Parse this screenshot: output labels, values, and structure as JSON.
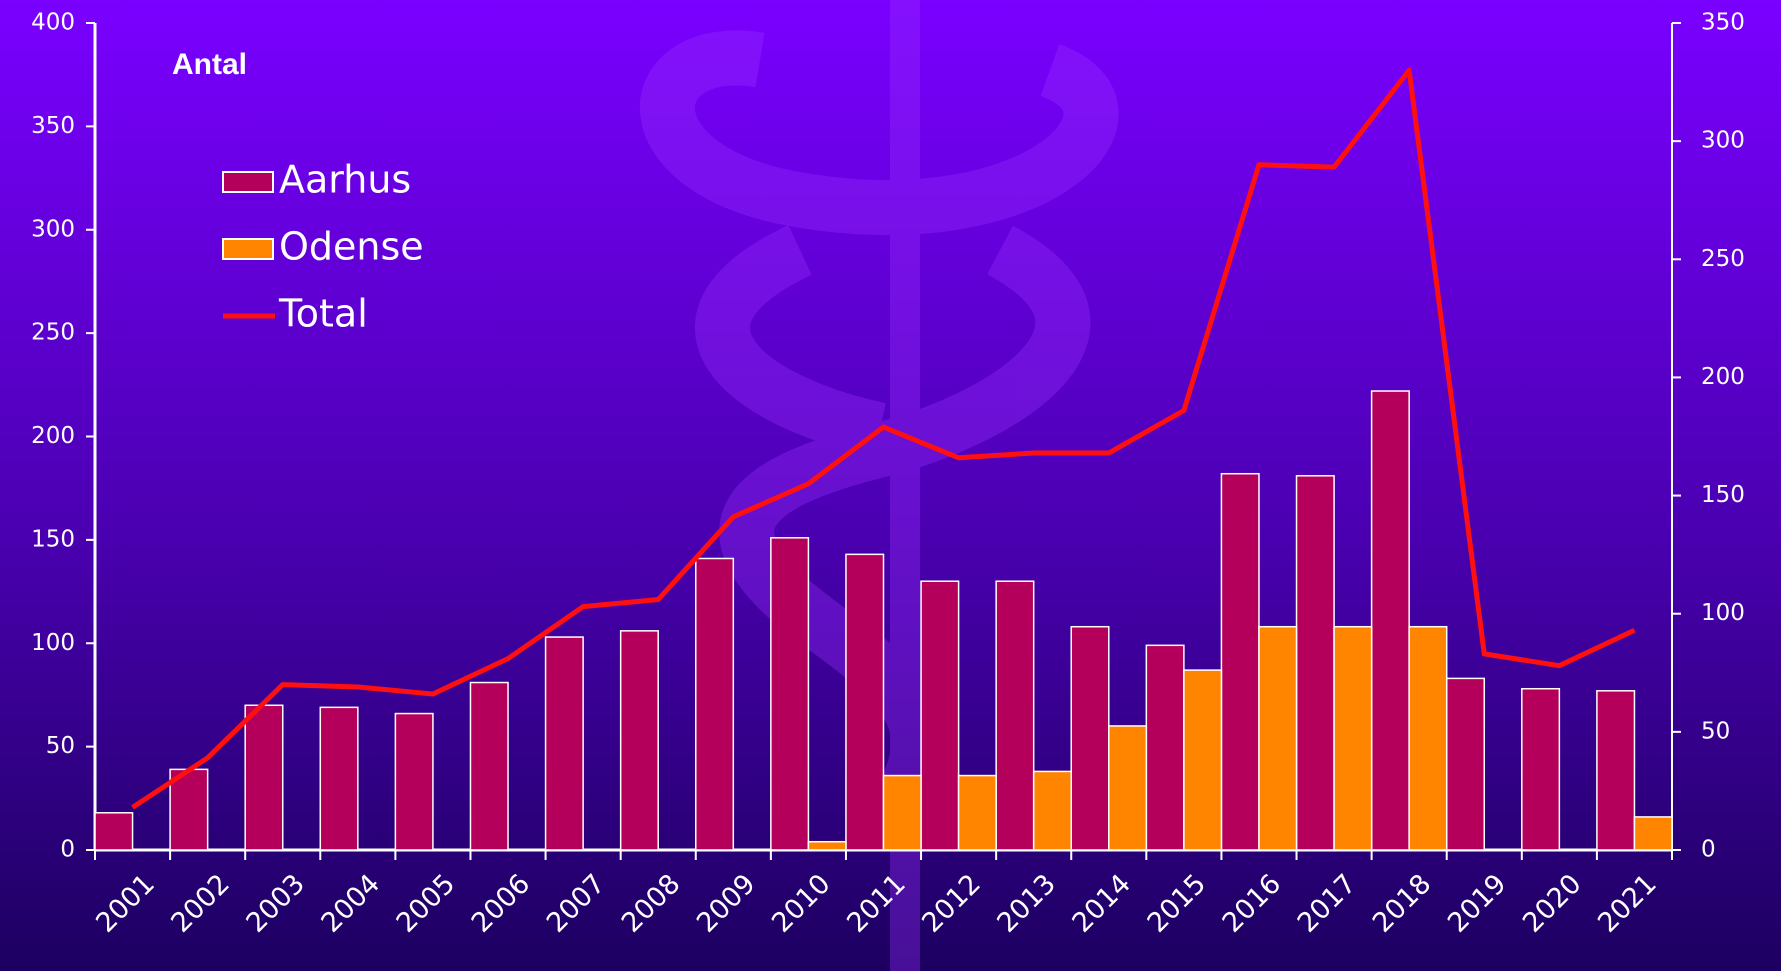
{
  "chart_data": {
    "type": "bar_line",
    "title": "Antal",
    "categories": [
      "2001",
      "2002",
      "2003",
      "2004",
      "2005",
      "2006",
      "2007",
      "2008",
      "2009",
      "2010",
      "2011",
      "2012",
      "2013",
      "2014",
      "2015",
      "2016",
      "2017",
      "2018",
      "2019",
      "2020",
      "2021"
    ],
    "series": [
      {
        "name": "Aarhus",
        "color": "#b4005a",
        "type": "bar",
        "values": [
          18,
          39,
          70,
          69,
          66,
          81,
          103,
          106,
          141,
          151,
          143,
          130,
          130,
          108,
          99,
          182,
          181,
          222,
          83,
          78,
          77
        ]
      },
      {
        "name": "Odense",
        "color": "#ff8400",
        "type": "bar",
        "values": [
          0,
          0,
          0,
          0,
          0,
          0,
          0,
          0,
          0,
          4,
          36,
          36,
          38,
          60,
          87,
          108,
          108,
          108,
          0,
          0,
          16
        ]
      },
      {
        "name": "Total",
        "color": "#ff1010",
        "type": "line",
        "axis": "y2",
        "values": [
          18,
          39,
          70,
          69,
          66,
          81,
          103,
          106,
          141,
          155,
          179,
          166,
          168,
          168,
          186,
          290,
          289,
          330,
          83,
          78,
          93
        ]
      }
    ],
    "ylim": [
      0,
      400
    ],
    "yticks": [
      0,
      50,
      100,
      150,
      200,
      250,
      300,
      350,
      400
    ],
    "y2lim": [
      0,
      350
    ],
    "y2ticks": [
      0,
      50,
      100,
      150,
      200,
      250,
      300,
      350
    ]
  }
}
